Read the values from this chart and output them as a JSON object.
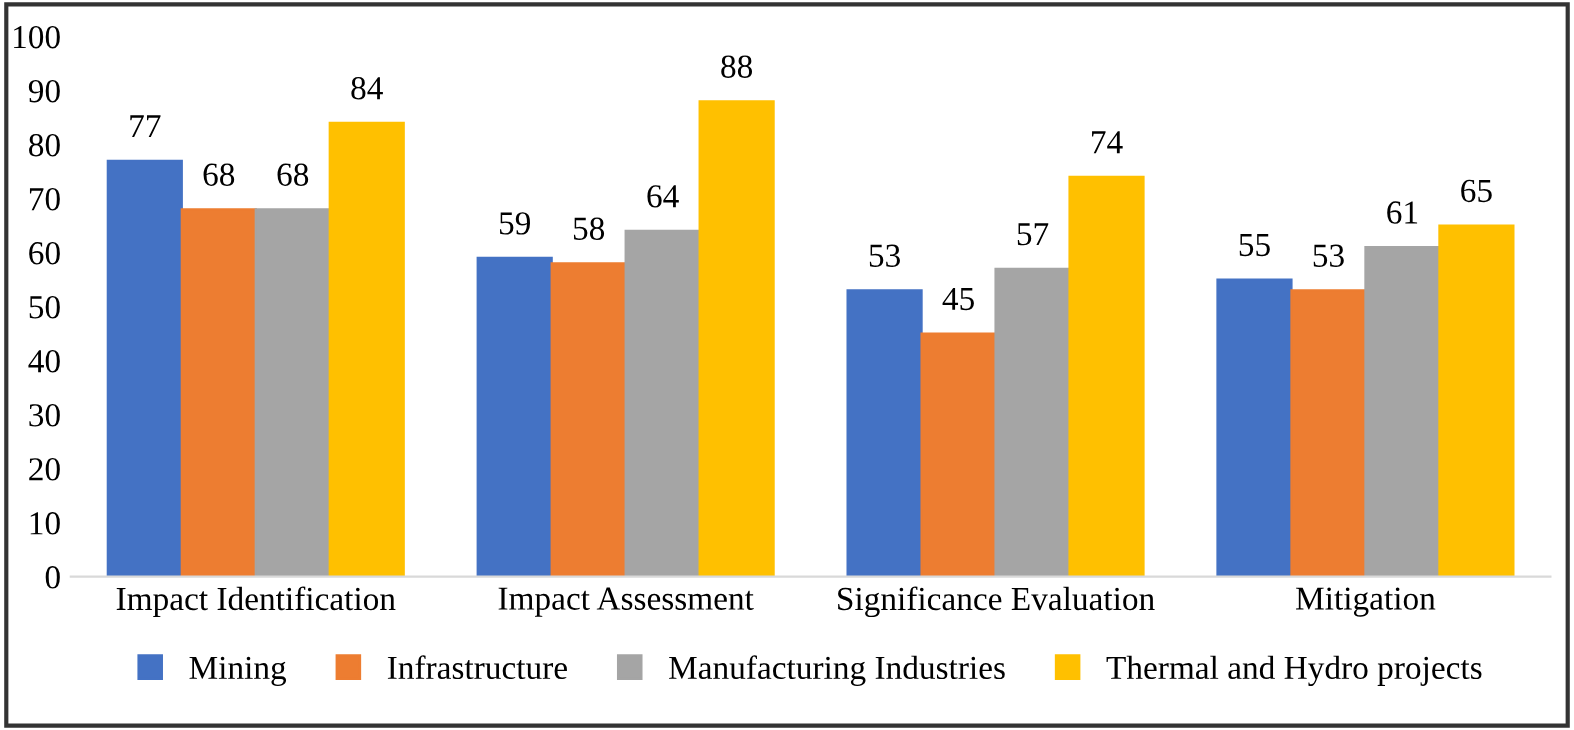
{
  "chart_data": {
    "type": "bar",
    "categories": [
      "Impact Identification",
      "Impact Assessment",
      "Significance Evaluation",
      "Mitigation"
    ],
    "series": [
      {
        "name": "Mining",
        "color": "#4472c4",
        "values": [
          77,
          59,
          53,
          55
        ]
      },
      {
        "name": "Infrastructure",
        "color": "#ed7d31",
        "values": [
          68,
          58,
          45,
          53
        ]
      },
      {
        "name": "Manufacturing Industries",
        "color": "#a5a5a5",
        "values": [
          68,
          64,
          57,
          61
        ]
      },
      {
        "name": "Thermal and Hydro projects",
        "color": "#ffc000",
        "values": [
          84,
          88,
          74,
          65
        ]
      }
    ],
    "ylim": [
      0,
      100
    ],
    "yticks": [
      0,
      10,
      20,
      30,
      40,
      50,
      60,
      70,
      80,
      90,
      100
    ],
    "data_labels": true,
    "grid": false,
    "legend": "bottom"
  }
}
